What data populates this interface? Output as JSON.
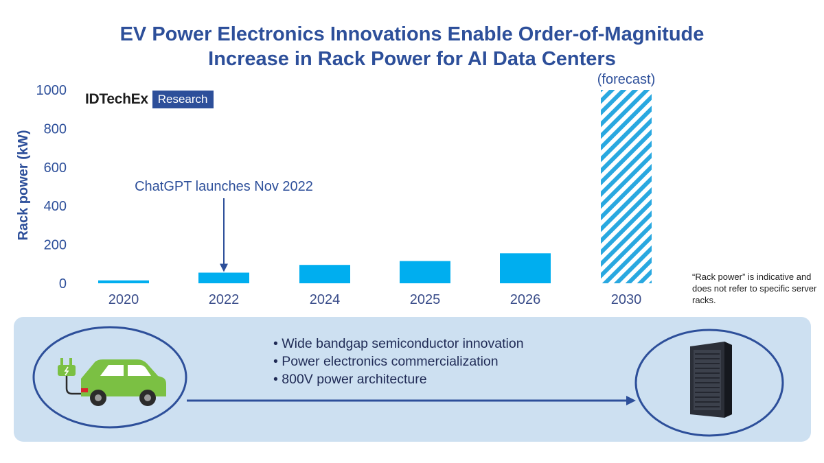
{
  "title_line1": "EV Power Electronics Innovations Enable Order-of-Magnitude",
  "title_line2": "Increase in Rack Power for AI Data Centers",
  "logo": {
    "word": "IDTechEx",
    "badge": "Research"
  },
  "colors": {
    "bar": "#00aeef",
    "forecast_stripe": "#29a8e0",
    "text": "#2d4f9a",
    "panel": "#cde0f1",
    "ellipse": "#2d4f9a"
  },
  "chart_data": {
    "type": "bar",
    "categories": [
      "2020",
      "2022",
      "2024",
      "2025",
      "2026",
      "2030"
    ],
    "values": [
      15,
      55,
      95,
      115,
      155,
      1000
    ],
    "forecast_flags": [
      false,
      false,
      false,
      false,
      false,
      true
    ],
    "ylabel": "Rack power (kW)",
    "ylim": [
      0,
      1000
    ],
    "yticks": [
      0,
      200,
      400,
      600,
      800,
      1000
    ],
    "grid": false,
    "annotations": [
      {
        "text": "ChatGPT launches Nov 2022",
        "category": "2022"
      },
      {
        "text": "(forecast)",
        "category": "2030"
      }
    ]
  },
  "note": "“Rack power” is indicative and does not refer to specific server racks.",
  "bullets": [
    "Wide bandgap semiconductor innovation",
    "Power electronics commercialization",
    "800V power architecture"
  ],
  "icons": {
    "left": "ev-car-charger-icon",
    "right": "server-rack-icon",
    "connector": "arrow-right-icon"
  }
}
